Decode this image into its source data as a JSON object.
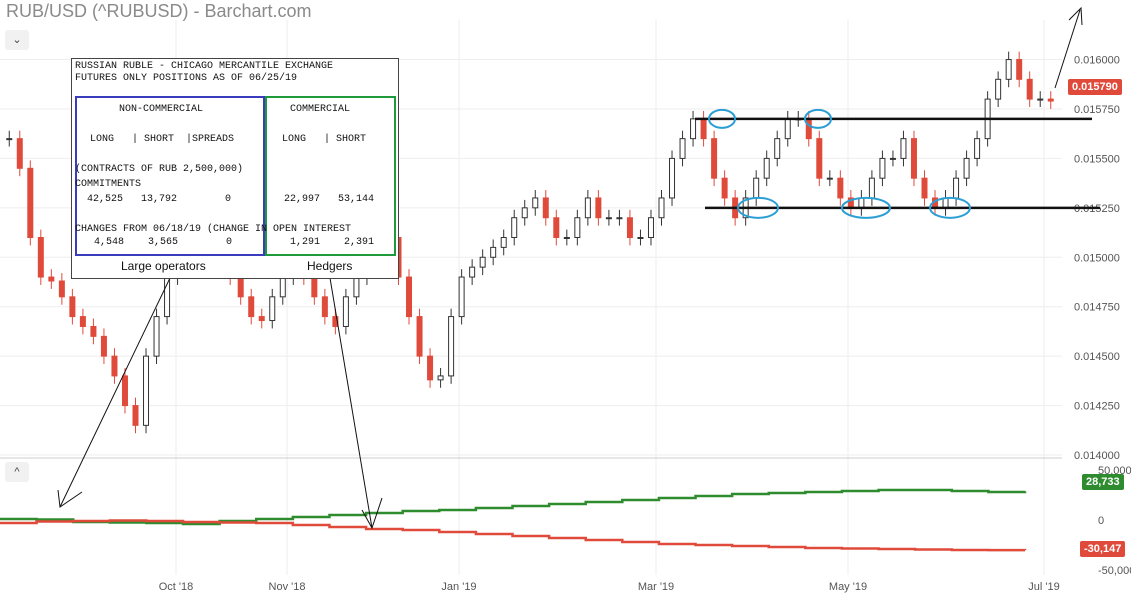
{
  "header": {
    "title": "RUB/USD (^RUBUSD) - Barchart.com",
    "collapse_top": "⌄",
    "collapse_bottom": "^"
  },
  "cot": {
    "line1": "RUSSIAN RUBLE - CHICAGO MERCANTILE EXCHANGE",
    "line2": "FUTURES ONLY POSITIONS AS OF 06/25/19",
    "noncommercial_label": "NON-COMMERCIAL",
    "commercial_label": "COMMERCIAL",
    "nc_cols": "LONG   | SHORT  |SPREADS",
    "c_cols": "LONG   | SHORT",
    "contracts_line": "(CONTRACTS OF RUB 2,500,000)",
    "commitments_label": "COMMITMENTS",
    "nc_commitments": "42,525   13,792        0",
    "c_commitments": "22,997   53,144",
    "changes_line": "CHANGES FROM 06/18/19 (CHANGE IN OPEN INTEREST",
    "nc_changes": "4,548    3,565        0",
    "c_changes": "1,291    2,391",
    "large_operators": "Large operators",
    "hedgers": "Hedgers"
  },
  "chart_data": [
    {
      "type": "candlestick",
      "title": "RUB/USD (^RUBUSD) - Barchart.com",
      "xlabel": "",
      "ylabel": "",
      "x_ticks": [
        "Oct '18",
        "Nov '18",
        "Jan '19",
        "Mar '19",
        "May '19",
        "Jul '19"
      ],
      "y_ticks": [
        "0.016000",
        "0.015750",
        "0.015500",
        "0.015250",
        "0.015000",
        "0.014750",
        "0.014500",
        "0.014250",
        "0.014000"
      ],
      "ylim": [
        0.014,
        0.0162
      ],
      "last_price": "0.015790",
      "close_series": [
        0.0156,
        0.01545,
        0.0151,
        0.0149,
        0.01488,
        0.0148,
        0.0147,
        0.01465,
        0.0146,
        0.0145,
        0.0144,
        0.01425,
        0.01415,
        0.0145,
        0.0147,
        0.0149,
        0.01505,
        0.0151,
        0.01515,
        0.0151,
        0.015,
        0.0149,
        0.0148,
        0.0147,
        0.01468,
        0.0148,
        0.0149,
        0.01495,
        0.0149,
        0.0148,
        0.0147,
        0.01465,
        0.0148,
        0.0149,
        0.015,
        0.0151,
        0.0151,
        0.0149,
        0.0147,
        0.0145,
        0.01438,
        0.0144,
        0.0147,
        0.0149,
        0.01495,
        0.015,
        0.01505,
        0.0151,
        0.0152,
        0.01525,
        0.0153,
        0.0152,
        0.0151,
        0.0151,
        0.0152,
        0.0153,
        0.0152,
        0.0152,
        0.0152,
        0.0151,
        0.0151,
        0.0152,
        0.0153,
        0.0155,
        0.0156,
        0.0157,
        0.0156,
        0.0154,
        0.0153,
        0.0152,
        0.0153,
        0.0154,
        0.0155,
        0.0156,
        0.0157,
        0.0157,
        0.0156,
        0.0154,
        0.0154,
        0.0153,
        0.01525,
        0.0153,
        0.0154,
        0.0155,
        0.0155,
        0.0156,
        0.0154,
        0.0153,
        0.01525,
        0.0153,
        0.0154,
        0.0155,
        0.0156,
        0.0158,
        0.0159,
        0.016,
        0.0159,
        0.0158,
        0.0158,
        0.01579
      ],
      "annotations": {
        "resistance": 0.0157,
        "support": 0.01525
      }
    },
    {
      "type": "line",
      "series": [
        {
          "color": "#2e8b2e",
          "last_value": "28,733",
          "values": [
            1000,
            500,
            -2000,
            -2500,
            -3000,
            -4000,
            -1000,
            1000,
            3000,
            5000,
            7000,
            9000,
            10000,
            12000,
            14000,
            16000,
            18000,
            20000,
            22000,
            24000,
            26000,
            27000,
            28000,
            29000,
            30000,
            30000,
            29000,
            28000,
            28733
          ]
        },
        {
          "color": "#e04a3a",
          "last_value": "-30,147",
          "values": [
            -3000,
            -1500,
            -1000,
            -500,
            -1000,
            -2000,
            -2500,
            -3000,
            -5000,
            -7000,
            -9000,
            -10000,
            -12000,
            -14000,
            -16000,
            -18000,
            -20000,
            -22000,
            -24000,
            -25000,
            -26000,
            -27000,
            -28000,
            -28500,
            -29000,
            -29500,
            -30000,
            -30100,
            -30147
          ]
        }
      ],
      "y_ticks": [
        "50,000",
        "0",
        "-50,000"
      ],
      "ylim": [
        -55000,
        55000
      ]
    }
  ]
}
